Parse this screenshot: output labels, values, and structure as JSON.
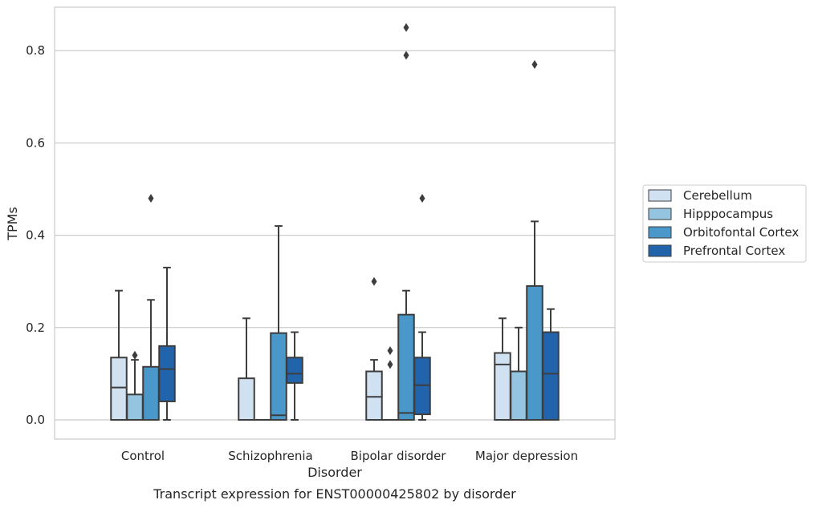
{
  "chart_data": {
    "type": "box",
    "title": "",
    "caption": "Transcript expression for ENST00000425802 by disorder",
    "xlabel": "Disorder",
    "ylabel": "TPMs",
    "ylim": [
      -0.04,
      0.893
    ],
    "yticks": [
      "0.0",
      "0.2",
      "0.4",
      "0.6",
      "0.8"
    ],
    "ytick_values": [
      0.0,
      0.2,
      0.4,
      0.6,
      0.8
    ],
    "grid": "horizontal",
    "legend_position": "right",
    "categories": [
      "Control",
      "Schizophrenia",
      "Bipolar disorder",
      "Major depression"
    ],
    "series": [
      {
        "name": "Cerebellum",
        "color": "#d0e1f2",
        "boxes": [
          {
            "min": 0.0,
            "q1": 0.0,
            "median": 0.07,
            "q3": 0.135,
            "max": 0.28,
            "outliers": []
          },
          {
            "min": 0.0,
            "q1": 0.0,
            "median": 0.0,
            "q3": 0.09,
            "max": 0.22,
            "outliers": []
          },
          {
            "min": 0.0,
            "q1": 0.0,
            "median": 0.05,
            "q3": 0.105,
            "max": 0.13,
            "outliers": [
              0.3
            ]
          },
          {
            "min": 0.0,
            "q1": 0.0,
            "median": 0.12,
            "q3": 0.145,
            "max": 0.22,
            "outliers": []
          }
        ]
      },
      {
        "name": "Hipppocampus",
        "color": "#94c4df",
        "boxes": [
          {
            "min": 0.0,
            "q1": 0.0,
            "median": 0.0,
            "q3": 0.055,
            "max": 0.13,
            "outliers": [
              0.14
            ]
          },
          {
            "min": 0.0,
            "q1": 0.0,
            "median": 0.0,
            "q3": 0.0,
            "max": 0.0,
            "outliers": []
          },
          {
            "min": 0.0,
            "q1": 0.0,
            "median": 0.0,
            "q3": 0.0,
            "max": 0.0,
            "outliers": [
              0.15,
              0.12
            ]
          },
          {
            "min": 0.0,
            "q1": 0.0,
            "median": 0.0,
            "q3": 0.105,
            "max": 0.2,
            "outliers": []
          }
        ]
      },
      {
        "name": "Orbitofontal Cortex",
        "color": "#4a98c9",
        "boxes": [
          {
            "min": 0.0,
            "q1": 0.0,
            "median": 0.0,
            "q3": 0.115,
            "max": 0.26,
            "outliers": [
              0.48
            ]
          },
          {
            "min": 0.0,
            "q1": 0.0,
            "median": 0.01,
            "q3": 0.188,
            "max": 0.42,
            "outliers": []
          },
          {
            "min": 0.0,
            "q1": 0.0,
            "median": 0.015,
            "q3": 0.228,
            "max": 0.28,
            "outliers": [
              0.85,
              0.79
            ]
          },
          {
            "min": 0.0,
            "q1": 0.0,
            "median": 0.0,
            "q3": 0.29,
            "max": 0.43,
            "outliers": [
              0.77
            ]
          }
        ]
      },
      {
        "name": "Prefrontal Cortex",
        "color": "#2164ab",
        "boxes": [
          {
            "min": 0.0,
            "q1": 0.04,
            "median": 0.11,
            "q3": 0.16,
            "max": 0.33,
            "outliers": []
          },
          {
            "min": 0.0,
            "q1": 0.08,
            "median": 0.1,
            "q3": 0.135,
            "max": 0.19,
            "outliers": []
          },
          {
            "min": 0.0,
            "q1": 0.012,
            "median": 0.075,
            "q3": 0.135,
            "max": 0.19,
            "outliers": [
              0.48
            ]
          },
          {
            "min": 0.0,
            "q1": 0.0,
            "median": 0.1,
            "q3": 0.19,
            "max": 0.24,
            "outliers": []
          }
        ]
      }
    ]
  }
}
